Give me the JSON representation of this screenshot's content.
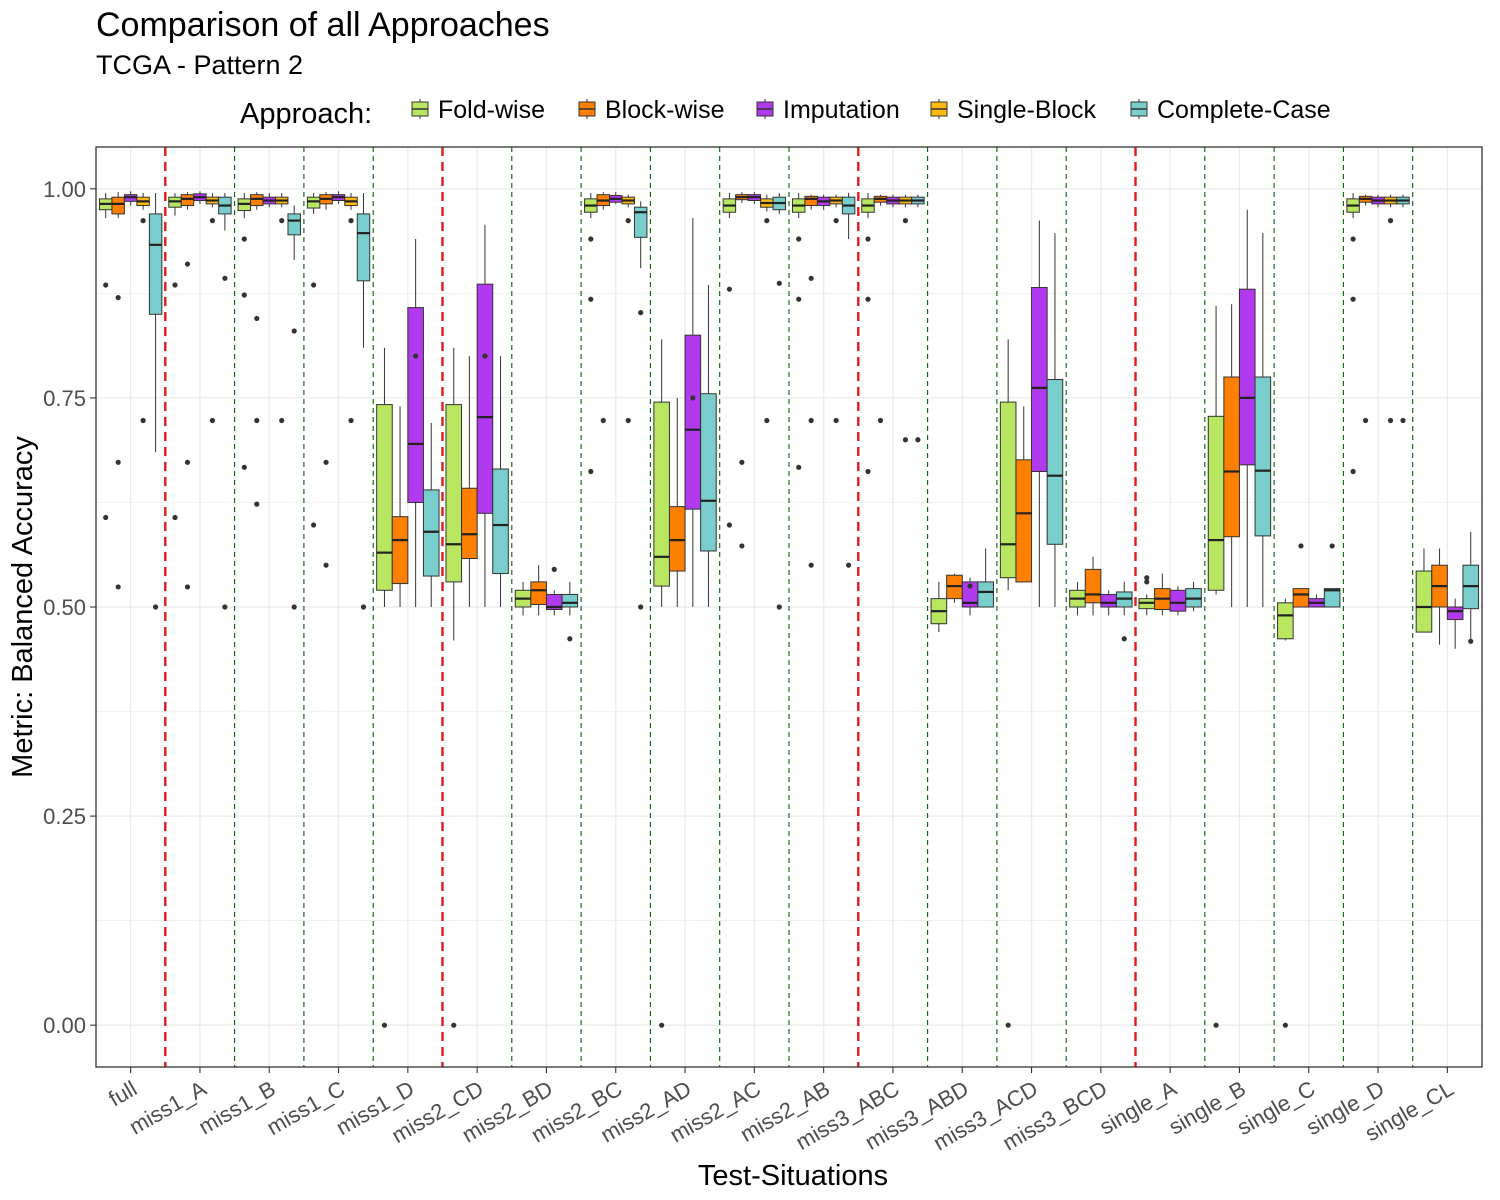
{
  "chart_data": {
    "type": "box",
    "title": "Comparison of all Approaches",
    "subtitle": "TCGA - Pattern 2",
    "xlabel": "Test-Situations",
    "ylabel": "Metric: Balanced Accuracy",
    "ylim": [
      -0.05,
      1.05
    ],
    "yticks": [
      "0.00",
      "0.25",
      "0.50",
      "0.75",
      "1.00"
    ],
    "legend": {
      "title": "Approach:",
      "position": "top"
    },
    "grid": true,
    "categories": [
      "full",
      "miss1_A",
      "miss1_B",
      "miss1_C",
      "miss1_D",
      "miss2_CD",
      "miss2_BD",
      "miss2_BC",
      "miss2_AD",
      "miss2_AC",
      "miss2_AB",
      "miss3_ABC",
      "miss3_ABD",
      "miss3_ACD",
      "miss3_BCD",
      "single_A",
      "single_B",
      "single_C",
      "single_D",
      "single_CL"
    ],
    "red_separators_after": [
      0,
      4,
      10,
      14
    ],
    "series": [
      {
        "name": "Fold-wise",
        "color": "#B8E660",
        "boxes": [
          [
            0.965,
            0.975,
            0.982,
            0.988,
            0.995
          ],
          [
            0.968,
            0.978,
            0.985,
            0.99,
            0.995
          ],
          [
            0.965,
            0.974,
            0.982,
            0.988,
            0.995
          ],
          [
            0.97,
            0.977,
            0.985,
            0.99,
            0.995
          ],
          [
            0.5,
            0.52,
            0.565,
            0.742,
            0.81
          ],
          [
            0.46,
            0.53,
            0.575,
            0.742,
            0.81
          ],
          [
            0.49,
            0.5,
            0.51,
            0.52,
            0.53
          ],
          [
            0.965,
            0.972,
            0.98,
            0.988,
            0.995
          ],
          [
            0.5,
            0.525,
            0.56,
            0.745,
            0.82
          ],
          [
            0.965,
            0.972,
            0.98,
            0.988,
            0.995
          ],
          [
            0.965,
            0.972,
            0.98,
            0.988,
            0.995
          ],
          [
            0.965,
            0.972,
            0.98,
            0.988,
            0.995
          ],
          [
            0.47,
            0.48,
            0.495,
            0.51,
            0.53
          ],
          [
            0.52,
            0.535,
            0.575,
            0.745,
            0.82
          ],
          [
            0.49,
            0.5,
            0.51,
            0.52,
            0.53
          ],
          [
            0.49,
            0.498,
            0.505,
            0.51,
            0.515
          ],
          [
            0.515,
            0.52,
            0.58,
            0.728,
            0.86
          ],
          [
            0.46,
            0.462,
            0.49,
            0.505,
            0.51
          ],
          [
            0.965,
            0.972,
            0.98,
            0.988,
            0.995
          ],
          [
            0.47,
            0.47,
            0.5,
            0.543,
            0.57
          ]
        ],
        "outliers": [
          [
            0.885,
            0.607
          ],
          [
            0.885,
            0.607
          ],
          [
            0.94,
            0.873,
            0.667
          ],
          [
            0.885,
            0.598
          ],
          [
            0.0
          ],
          [
            0.0
          ],
          [],
          [
            0.94,
            0.868,
            0.662
          ],
          [
            0.0
          ],
          [
            0.88,
            0.598
          ],
          [
            0.94,
            0.868,
            0.667
          ],
          [
            0.94,
            0.868,
            0.662
          ],
          [],
          [
            0.0
          ],
          [],
          [
            0.535,
            0.53
          ],
          [
            0.0
          ],
          [
            0.0
          ],
          [
            0.94,
            0.868,
            0.662
          ],
          []
        ]
      },
      {
        "name": "Block-wise",
        "color": "#FF7F00",
        "boxes": [
          [
            0.965,
            0.97,
            0.982,
            0.99,
            0.996
          ],
          [
            0.975,
            0.98,
            0.988,
            0.993,
            0.996
          ],
          [
            0.975,
            0.98,
            0.988,
            0.993,
            0.996
          ],
          [
            0.975,
            0.982,
            0.988,
            0.993,
            0.996
          ],
          [
            0.5,
            0.528,
            0.58,
            0.608,
            0.74
          ],
          [
            0.5,
            0.558,
            0.587,
            0.642,
            0.8
          ],
          [
            0.49,
            0.503,
            0.52,
            0.53,
            0.55
          ],
          [
            0.975,
            0.98,
            0.986,
            0.993,
            0.996
          ],
          [
            0.5,
            0.543,
            0.58,
            0.62,
            0.75
          ],
          [
            0.983,
            0.987,
            0.99,
            0.993,
            0.996
          ],
          [
            0.975,
            0.98,
            0.988,
            0.991,
            0.993
          ],
          [
            0.98,
            0.984,
            0.988,
            0.991,
            0.993
          ],
          [
            0.505,
            0.51,
            0.525,
            0.538,
            0.54
          ],
          [
            0.53,
            0.53,
            0.612,
            0.676,
            0.74
          ],
          [
            0.49,
            0.505,
            0.515,
            0.545,
            0.56
          ],
          [
            0.49,
            0.497,
            0.51,
            0.522,
            0.54
          ],
          [
            0.5,
            0.584,
            0.662,
            0.775,
            0.862
          ],
          [
            0.5,
            0.5,
            0.515,
            0.522,
            0.522
          ],
          [
            0.98,
            0.984,
            0.988,
            0.991,
            0.993
          ],
          [
            0.455,
            0.5,
            0.525,
            0.55,
            0.57
          ]
        ],
        "outliers": [
          [
            0.87,
            0.673,
            0.524
          ],
          [
            0.91,
            0.673,
            0.524
          ],
          [
            0.845,
            0.723,
            0.623
          ],
          [
            0.673,
            0.55
          ],
          [],
          [],
          [],
          [
            0.723
          ],
          [],
          [
            0.673,
            0.573
          ],
          [
            0.893,
            0.723,
            0.55
          ],
          [
            0.723
          ],
          [],
          [],
          [],
          [],
          [],
          [
            0.573
          ],
          [
            0.723
          ],
          []
        ]
      },
      {
        "name": "Imputation",
        "color": "#B23AEE",
        "boxes": [
          [
            0.98,
            0.985,
            0.99,
            0.993,
            0.997
          ],
          [
            0.982,
            0.986,
            0.99,
            0.994,
            0.997
          ],
          [
            0.978,
            0.982,
            0.986,
            0.99,
            0.995
          ],
          [
            0.982,
            0.986,
            0.99,
            0.993,
            0.997
          ],
          [
            0.5,
            0.625,
            0.695,
            0.858,
            0.94
          ],
          [
            0.5,
            0.612,
            0.727,
            0.886,
            0.957
          ],
          [
            0.49,
            0.497,
            0.5,
            0.515,
            0.52
          ],
          [
            0.982,
            0.984,
            0.988,
            0.992,
            0.996
          ],
          [
            0.5,
            0.617,
            0.712,
            0.825,
            0.965
          ],
          [
            0.982,
            0.986,
            0.99,
            0.993,
            0.996
          ],
          [
            0.975,
            0.98,
            0.985,
            0.99,
            0.993
          ],
          [
            0.978,
            0.982,
            0.986,
            0.99,
            0.993
          ],
          [
            0.49,
            0.5,
            0.505,
            0.53,
            0.535
          ],
          [
            0.5,
            0.662,
            0.762,
            0.882,
            0.962
          ],
          [
            0.49,
            0.5,
            0.505,
            0.515,
            0.52
          ],
          [
            0.49,
            0.495,
            0.505,
            0.52,
            0.525
          ],
          [
            0.5,
            0.67,
            0.75,
            0.88,
            0.975
          ],
          [
            0.5,
            0.5,
            0.505,
            0.51,
            0.515
          ],
          [
            0.978,
            0.982,
            0.986,
            0.99,
            0.993
          ],
          [
            0.45,
            0.485,
            0.495,
            0.5,
            0.51
          ]
        ],
        "outliers": [
          [],
          [],
          [],
          [],
          [
            0.8
          ],
          [
            0.8
          ],
          [
            0.545
          ],
          [],
          [
            0.75
          ],
          [],
          [],
          [],
          [
            0.525
          ],
          [],
          [],
          [],
          [],
          [],
          [],
          []
        ]
      },
      {
        "name": "Single-Block",
        "color": "#FFB90F",
        "boxes": [
          [
            0.975,
            0.98,
            0.985,
            0.99,
            0.995
          ],
          [
            0.978,
            0.982,
            0.986,
            0.99,
            0.995
          ],
          [
            0.978,
            0.982,
            0.986,
            0.99,
            0.995
          ],
          [
            0.975,
            0.98,
            0.985,
            0.99,
            0.995
          ],
          null,
          null,
          null,
          [
            0.978,
            0.982,
            0.986,
            0.99,
            0.993
          ],
          null,
          [
            0.973,
            0.978,
            0.983,
            0.988,
            0.993
          ],
          [
            0.978,
            0.982,
            0.986,
            0.99,
            0.993
          ],
          [
            0.978,
            0.982,
            0.986,
            0.99,
            0.993
          ],
          null,
          null,
          null,
          null,
          null,
          null,
          [
            0.978,
            0.982,
            0.986,
            0.99,
            0.993
          ],
          null
        ],
        "outliers": [
          [
            0.962,
            0.723
          ],
          [
            0.962,
            0.723
          ],
          [
            0.962,
            0.723
          ],
          [
            0.962,
            0.723
          ],
          [],
          [],
          [],
          [
            0.962,
            0.723
          ],
          [],
          [
            0.962,
            0.723
          ],
          [
            0.962,
            0.723
          ],
          [
            0.962,
            0.7
          ],
          [],
          [],
          [],
          [],
          [],
          [],
          [
            0.962,
            0.723
          ],
          []
        ]
      },
      {
        "name": "Complete-Case",
        "color": "#79CDCD",
        "boxes": [
          [
            0.685,
            0.85,
            0.933,
            0.97,
            0.995
          ],
          [
            0.95,
            0.97,
            0.98,
            0.99,
            0.995
          ],
          [
            0.915,
            0.945,
            0.962,
            0.97,
            0.98
          ],
          [
            0.81,
            0.89,
            0.947,
            0.97,
            0.995
          ],
          [
            0.5,
            0.537,
            0.59,
            0.64,
            0.72
          ],
          [
            0.5,
            0.54,
            0.598,
            0.665,
            0.8
          ],
          [
            0.49,
            0.5,
            0.505,
            0.515,
            0.53
          ],
          [
            0.905,
            0.942,
            0.972,
            0.978,
            0.985
          ],
          [
            0.5,
            0.567,
            0.627,
            0.755,
            0.885
          ],
          [
            0.97,
            0.975,
            0.983,
            0.99,
            0.995
          ],
          [
            0.94,
            0.97,
            0.98,
            0.99,
            0.995
          ],
          [
            0.978,
            0.982,
            0.986,
            0.99,
            0.993
          ],
          [
            0.5,
            0.5,
            0.518,
            0.53,
            0.57
          ],
          [
            0.5,
            0.575,
            0.657,
            0.772,
            0.947
          ],
          [
            0.49,
            0.5,
            0.51,
            0.518,
            0.53
          ],
          [
            0.495,
            0.5,
            0.51,
            0.522,
            0.53
          ],
          [
            0.5,
            0.585,
            0.663,
            0.775,
            0.947
          ],
          [
            0.5,
            0.5,
            0.52,
            0.522,
            0.522
          ],
          [
            0.978,
            0.982,
            0.986,
            0.99,
            0.993
          ],
          [
            0.46,
            0.498,
            0.525,
            0.55,
            0.59
          ]
        ],
        "outliers": [
          [
            0.5
          ],
          [
            0.893,
            0.5
          ],
          [
            0.83,
            0.5
          ],
          [
            0.5
          ],
          [],
          [],
          [
            0.462
          ],
          [
            0.852,
            0.5
          ],
          [],
          [
            0.887,
            0.5
          ],
          [
            0.55
          ],
          [
            0.7
          ],
          [],
          [],
          [
            0.462
          ],
          [],
          [],
          [
            0.573
          ],
          [
            0.723
          ],
          [
            0.459
          ]
        ]
      }
    ]
  }
}
